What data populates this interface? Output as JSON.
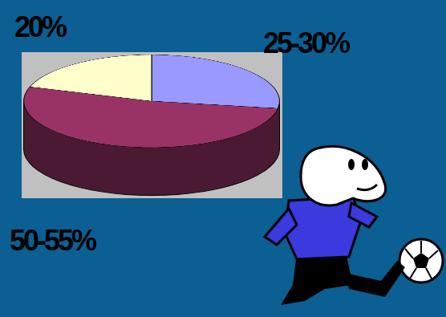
{
  "chart_data": {
    "type": "pie",
    "values": [
      27.5,
      52.5,
      20
    ],
    "value_labels": [
      "25-30%",
      "50-55%",
      "20%"
    ],
    "colors": [
      "#9999ff",
      "#993366",
      "#ffffcc"
    ],
    "data_labels": true
  }
}
